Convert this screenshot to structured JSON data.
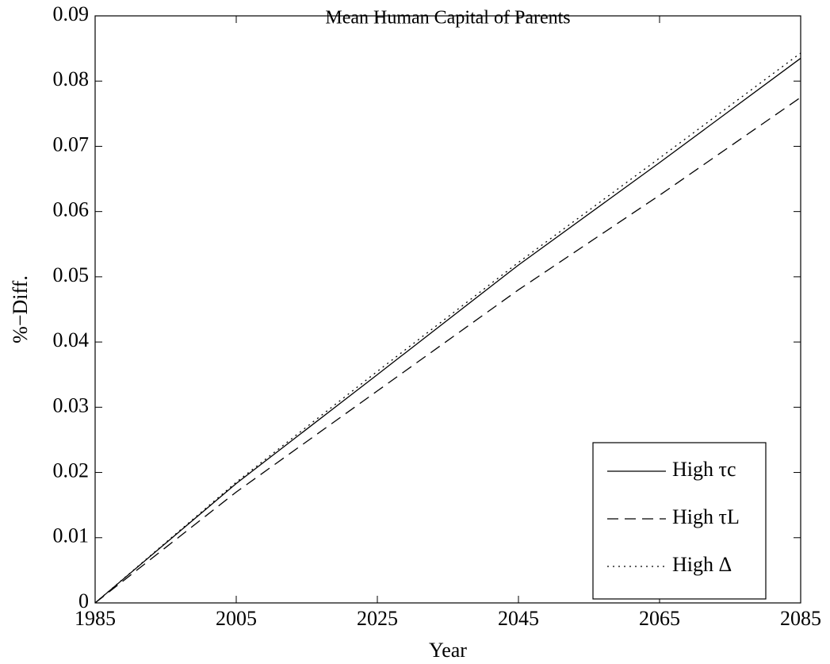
{
  "chart_data": {
    "type": "line",
    "title": "Mean Human Capital of Parents",
    "x_label": "Year",
    "y_label": "%−Diff.",
    "x": [
      1985,
      2005,
      2025,
      2045,
      2065,
      2085
    ],
    "series": [
      {
        "name": "High τc",
        "color": "#000000",
        "dash": "solid",
        "values": [
          0,
          0.0183,
          0.035,
          0.0518,
          0.0675,
          0.0835
        ]
      },
      {
        "name": "High τL",
        "color": "#000000",
        "dash": "dashed",
        "values": [
          0,
          0.017,
          0.0325,
          0.048,
          0.0625,
          0.0775
        ]
      },
      {
        "name": "High Δ",
        "color": "#000000",
        "dash": "dotted",
        "values": [
          0,
          0.0185,
          0.0355,
          0.0522,
          0.0682,
          0.0843
        ]
      }
    ],
    "xlim": [
      1985,
      2085
    ],
    "xticks": [
      1985,
      2005,
      2025,
      2045,
      2065,
      2085
    ],
    "ylim": [
      0,
      0.09
    ],
    "yticks": [
      0,
      0.01,
      0.02,
      0.03,
      0.04,
      0.05,
      0.06,
      0.07,
      0.08,
      0.09
    ],
    "legend": "lower right",
    "grid": false
  }
}
